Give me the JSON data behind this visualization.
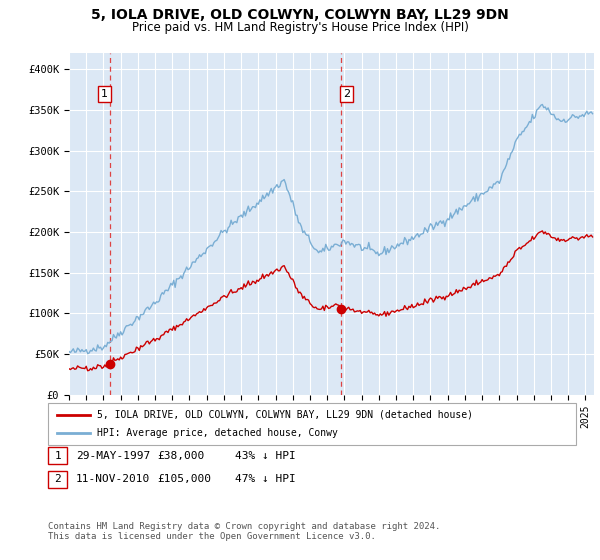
{
  "title": "5, IOLA DRIVE, OLD COLWYN, COLWYN BAY, LL29 9DN",
  "subtitle": "Price paid vs. HM Land Registry's House Price Index (HPI)",
  "ylim": [
    0,
    420000
  ],
  "yticks": [
    0,
    50000,
    100000,
    150000,
    200000,
    250000,
    300000,
    350000,
    400000
  ],
  "ytick_labels": [
    "£0",
    "£50K",
    "£100K",
    "£150K",
    "£200K",
    "£250K",
    "£300K",
    "£350K",
    "£400K"
  ],
  "sale1_year": 1997.37,
  "sale1_price": 38000,
  "sale1_label": "1",
  "sale2_year": 2010.83,
  "sale2_price": 105000,
  "sale2_label": "2",
  "hpi_color": "#7aaed4",
  "sale_color": "#cc0000",
  "dashed_color": "#dd4444",
  "bg_color": "#dce8f5",
  "legend_label_red": "5, IOLA DRIVE, OLD COLWYN, COLWYN BAY, LL29 9DN (detached house)",
  "legend_label_blue": "HPI: Average price, detached house, Conwy",
  "table_entries": [
    {
      "num": "1",
      "date": "29-MAY-1997",
      "price": "£38,000",
      "pct": "43% ↓ HPI"
    },
    {
      "num": "2",
      "date": "11-NOV-2010",
      "price": "£105,000",
      "pct": "47% ↓ HPI"
    }
  ],
  "footer": "Contains HM Land Registry data © Crown copyright and database right 2024.\nThis data is licensed under the Open Government Licence v3.0."
}
